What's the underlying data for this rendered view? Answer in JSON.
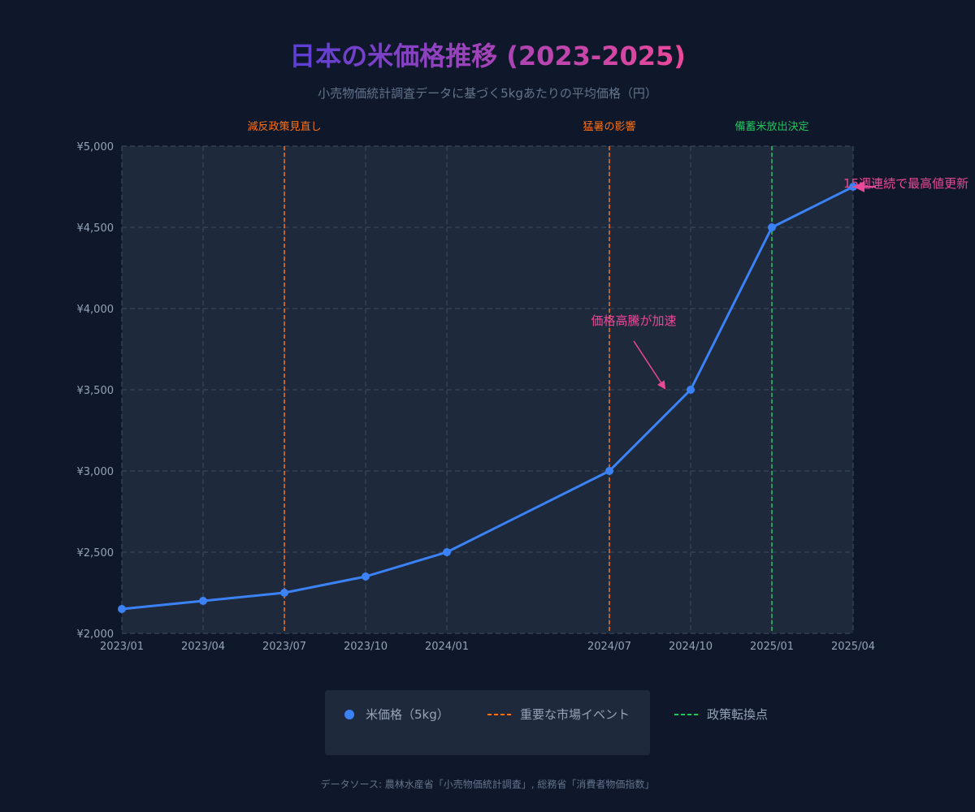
{
  "colors": {
    "background": "#0f172a",
    "plot_bg": "#1e293b",
    "grid": "#334155",
    "line": "#3b82f6",
    "event": "#f97316",
    "policy": "#22c55e",
    "annotation": "#ec4899",
    "title_start": "#5b3fd6",
    "title_end": "#ec4899",
    "axis_text": "#94a3b8",
    "muted_text": "#64748b",
    "legend_bg": "#1e293b"
  },
  "chart_data": {
    "type": "line",
    "title": "日本の米価格推移 (2023-2025)",
    "subtitle": "小売物価統計調査データに基づく5kgあたりの平均価格（円）",
    "xlabel": "",
    "ylabel": "",
    "x": [
      "2023/01",
      "2023/04",
      "2023/07",
      "2023/10",
      "2024/01",
      "2024/07",
      "2024/10",
      "2025/01",
      "2025/04"
    ],
    "x_months": [
      0,
      3,
      6,
      9,
      12,
      18,
      21,
      24,
      27
    ],
    "x_ticks": [
      {
        "label": "2023/01",
        "month": 0
      },
      {
        "label": "2023/04",
        "month": 3
      },
      {
        "label": "2023/07",
        "month": 6
      },
      {
        "label": "2023/10",
        "month": 9
      },
      {
        "label": "2024/01",
        "month": 12
      },
      {
        "label": "2024/07",
        "month": 18
      },
      {
        "label": "2024/10",
        "month": 21
      },
      {
        "label": "2025/01",
        "month": 24
      },
      {
        "label": "2025/04",
        "month": 27
      }
    ],
    "xlim_months": [
      0,
      27
    ],
    "series": [
      {
        "name": "米価格（5kg）",
        "values": [
          2150,
          2200,
          2250,
          2350,
          2500,
          3000,
          3500,
          4500,
          4750
        ]
      }
    ],
    "ylim": [
      2000,
      5000
    ],
    "y_ticks": [
      2000,
      2500,
      3000,
      3500,
      4000,
      4500,
      5000
    ],
    "y_tick_labels": [
      "¥2,000",
      "¥2,500",
      "¥3,000",
      "¥3,500",
      "¥4,000",
      "¥4,500",
      "¥5,000"
    ],
    "grid": true,
    "events": [
      {
        "label": "減反政策見直し",
        "month": 6,
        "kind": "event"
      },
      {
        "label": "猛暑の影響",
        "month": 18,
        "kind": "event"
      },
      {
        "label": "備蓄米放出決定",
        "month": 24,
        "kind": "policy"
      }
    ],
    "annotations": [
      {
        "text": "価格高騰が加速",
        "target_month": 21,
        "target_value": 3500
      },
      {
        "text": "15週連続で最高値更新",
        "target_month": 27,
        "target_value": 4750
      }
    ],
    "legend": {
      "placement": "bottom",
      "items": [
        {
          "label": "米価格（5kg）",
          "kind": "marker"
        },
        {
          "label": "重要な市場イベント",
          "kind": "event-line"
        },
        {
          "label": "政策転換点",
          "kind": "policy-line"
        }
      ]
    },
    "source_note": "データソース: 農林水産省「小売物価統計調査」, 総務省「消費者物価指数」"
  }
}
